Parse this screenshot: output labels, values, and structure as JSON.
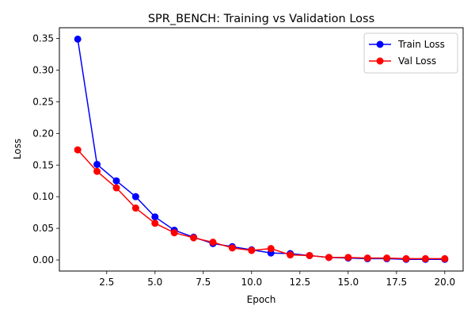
{
  "chart_data": {
    "type": "line",
    "title": "SPR_BENCH: Training vs Validation Loss",
    "xlabel": "Epoch",
    "ylabel": "Loss",
    "xlim": [
      0.05,
      20.95
    ],
    "ylim": [
      -0.0175,
      0.367
    ],
    "xticks": [
      2.5,
      5.0,
      7.5,
      10.0,
      12.5,
      15.0,
      17.5,
      20.0
    ],
    "xtick_labels": [
      "2.5",
      "5.0",
      "7.5",
      "10.0",
      "12.5",
      "15.0",
      "17.5",
      "20.0"
    ],
    "yticks": [
      0.0,
      0.05,
      0.1,
      0.15,
      0.2,
      0.25,
      0.3,
      0.35
    ],
    "ytick_labels": [
      "0.00",
      "0.05",
      "0.10",
      "0.15",
      "0.20",
      "0.25",
      "0.30",
      "0.35"
    ],
    "grid": false,
    "legend_position": "top-right",
    "x": [
      1,
      2,
      3,
      4,
      5,
      6,
      7,
      8,
      9,
      10,
      11,
      12,
      13,
      14,
      15,
      16,
      17,
      18,
      19,
      20
    ],
    "series": [
      {
        "name": "Train Loss",
        "color": "#0000ff",
        "values": [
          0.349,
          0.151,
          0.125,
          0.1,
          0.068,
          0.047,
          0.036,
          0.026,
          0.021,
          0.016,
          0.011,
          0.01,
          0.007,
          0.004,
          0.003,
          0.002,
          0.002,
          0.001,
          0.001,
          0.001
        ]
      },
      {
        "name": "Val Loss",
        "color": "#ff0000",
        "values": [
          0.174,
          0.14,
          0.114,
          0.082,
          0.058,
          0.043,
          0.035,
          0.028,
          0.019,
          0.015,
          0.018,
          0.008,
          0.007,
          0.004,
          0.004,
          0.003,
          0.003,
          0.002,
          0.002,
          0.002
        ]
      }
    ]
  }
}
